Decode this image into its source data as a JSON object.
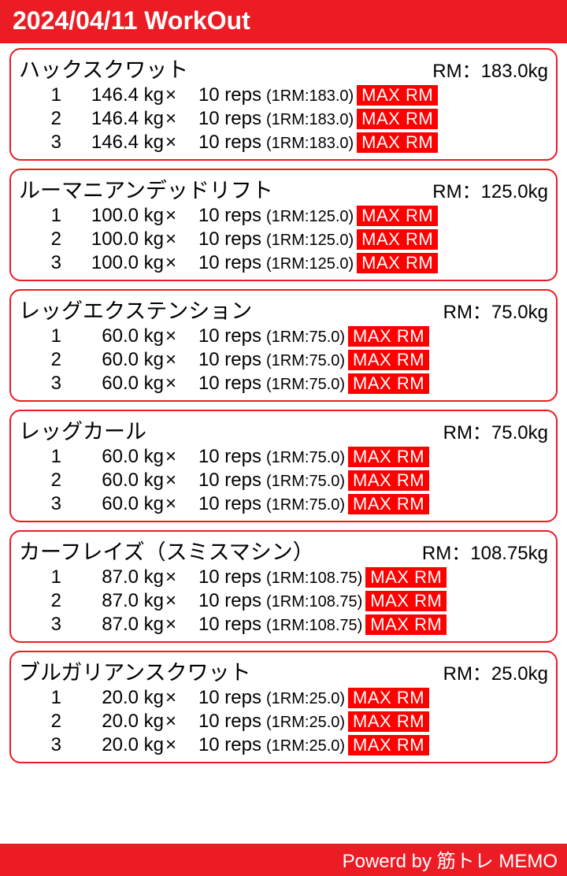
{
  "header": {
    "title": "2024/04/11 WorkOut"
  },
  "footer": {
    "text": "Powerd by 筋トレ MEMO"
  },
  "rm_prefix": "RM：",
  "kg_suffix": "kg",
  "times_glyph": "×",
  "reps_word": "reps",
  "onerm_prefix": "(1RM:",
  "onerm_suffix": ")",
  "badge_text": "MAX RM",
  "exercises": [
    {
      "name": "ハックスクワット",
      "rm": "183.0kg",
      "sets": [
        {
          "idx": "1",
          "weight": "146.4 kg",
          "reps": "10 reps",
          "onerm": "(1RM:183.0)"
        },
        {
          "idx": "2",
          "weight": "146.4 kg",
          "reps": "10 reps",
          "onerm": "(1RM:183.0)"
        },
        {
          "idx": "3",
          "weight": "146.4 kg",
          "reps": "10 reps",
          "onerm": "(1RM:183.0)"
        }
      ]
    },
    {
      "name": "ルーマニアンデッドリフト",
      "rm": "125.0kg",
      "sets": [
        {
          "idx": "1",
          "weight": "100.0 kg",
          "reps": "10 reps",
          "onerm": "(1RM:125.0)"
        },
        {
          "idx": "2",
          "weight": "100.0 kg",
          "reps": "10 reps",
          "onerm": "(1RM:125.0)"
        },
        {
          "idx": "3",
          "weight": "100.0 kg",
          "reps": "10 reps",
          "onerm": "(1RM:125.0)"
        }
      ]
    },
    {
      "name": "レッグエクステンション",
      "rm": "75.0kg",
      "sets": [
        {
          "idx": "1",
          "weight": "60.0 kg",
          "reps": "10 reps",
          "onerm": "(1RM:75.0)"
        },
        {
          "idx": "2",
          "weight": "60.0 kg",
          "reps": "10 reps",
          "onerm": "(1RM:75.0)"
        },
        {
          "idx": "3",
          "weight": "60.0 kg",
          "reps": "10 reps",
          "onerm": "(1RM:75.0)"
        }
      ]
    },
    {
      "name": "レッグカール",
      "rm": "75.0kg",
      "sets": [
        {
          "idx": "1",
          "weight": "60.0 kg",
          "reps": "10 reps",
          "onerm": "(1RM:75.0)"
        },
        {
          "idx": "2",
          "weight": "60.0 kg",
          "reps": "10 reps",
          "onerm": "(1RM:75.0)"
        },
        {
          "idx": "3",
          "weight": "60.0 kg",
          "reps": "10 reps",
          "onerm": "(1RM:75.0)"
        }
      ]
    },
    {
      "name": "カーフレイズ（スミスマシン）",
      "rm": "108.75kg",
      "sets": [
        {
          "idx": "1",
          "weight": "87.0 kg",
          "reps": "10 reps",
          "onerm": "(1RM:108.75)"
        },
        {
          "idx": "2",
          "weight": "87.0 kg",
          "reps": "10 reps",
          "onerm": "(1RM:108.75)"
        },
        {
          "idx": "3",
          "weight": "87.0 kg",
          "reps": "10 reps",
          "onerm": "(1RM:108.75)"
        }
      ]
    },
    {
      "name": "ブルガリアンスクワット",
      "rm": "25.0kg",
      "sets": [
        {
          "idx": "1",
          "weight": "20.0 kg",
          "reps": "10 reps",
          "onerm": "(1RM:25.0)"
        },
        {
          "idx": "2",
          "weight": "20.0 kg",
          "reps": "10 reps",
          "onerm": "(1RM:25.0)"
        },
        {
          "idx": "3",
          "weight": "20.0 kg",
          "reps": "10 reps",
          "onerm": "(1RM:25.0)"
        }
      ]
    }
  ]
}
